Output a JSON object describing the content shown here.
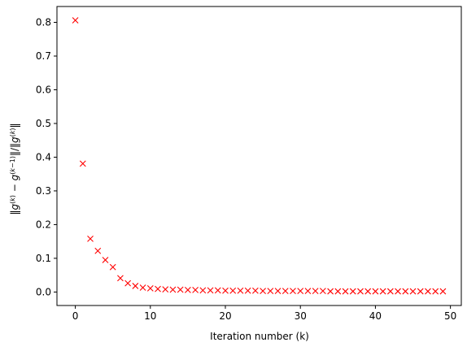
{
  "chart_data": {
    "type": "scatter",
    "title": "",
    "xlabel": "Iteration number (k)",
    "ylabel": "‖g^(k) − g^(k−1)‖/‖g^(k)‖",
    "xlim": [
      -2.45,
      51.45
    ],
    "ylim": [
      -0.04,
      0.847
    ],
    "xticks": [
      0,
      10,
      20,
      30,
      40,
      50
    ],
    "xtick_labels": [
      "0",
      "10",
      "20",
      "30",
      "40",
      "50"
    ],
    "yticks": [
      0.0,
      0.1,
      0.2,
      0.3,
      0.4,
      0.5,
      0.6,
      0.7,
      0.8
    ],
    "ytick_labels": [
      "0.0",
      "0.1",
      "0.2",
      "0.3",
      "0.4",
      "0.5",
      "0.6",
      "0.7",
      "0.8"
    ],
    "grid": false,
    "marker": "x",
    "marker_color": "#ff0000",
    "series": [
      {
        "x": [
          0,
          1,
          2,
          3,
          4,
          5,
          6,
          7,
          8,
          9,
          10,
          11,
          12,
          13,
          14,
          15,
          16,
          17,
          18,
          19,
          20,
          21,
          22,
          23,
          24,
          25,
          26,
          27,
          28,
          29,
          30,
          31,
          32,
          33,
          34,
          35,
          36,
          37,
          38,
          39,
          40,
          41,
          42,
          43,
          44,
          45,
          46,
          47,
          48,
          49
        ],
        "y": [
          0.806,
          0.381,
          0.158,
          0.122,
          0.095,
          0.074,
          0.041,
          0.026,
          0.018,
          0.013,
          0.011,
          0.009,
          0.008,
          0.007,
          0.007,
          0.006,
          0.006,
          0.005,
          0.005,
          0.005,
          0.004,
          0.004,
          0.004,
          0.004,
          0.004,
          0.003,
          0.003,
          0.003,
          0.003,
          0.003,
          0.003,
          0.003,
          0.003,
          0.003,
          0.002,
          0.002,
          0.002,
          0.002,
          0.002,
          0.002,
          0.002,
          0.002,
          0.002,
          0.002,
          0.002,
          0.002,
          0.002,
          0.002,
          0.002,
          0.002
        ]
      }
    ]
  }
}
